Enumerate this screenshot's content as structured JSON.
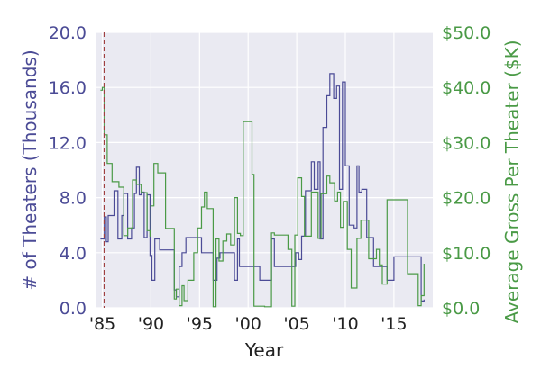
{
  "chart_data": {
    "type": "line",
    "title": "",
    "xlabel": "Year",
    "ylabel": "# of Theaters (Thousands)",
    "ylabel_right": "Average Gross Per Theater ($K)",
    "xlim": [
      1984.3,
      2019.0
    ],
    "ylim": [
      0,
      20
    ],
    "ylim_right": [
      0,
      50
    ],
    "grid": true,
    "colors": {
      "theaters": "#4b4b96",
      "gross": "#4a9a46",
      "marker": "#a04040",
      "background": "#eaeaf2",
      "grid": "#ffffff"
    },
    "x_ticks": [
      {
        "value": 1985,
        "label": "'85"
      },
      {
        "value": 1990,
        "label": "'90"
      },
      {
        "value": 1995,
        "label": "'95"
      },
      {
        "value": 2000,
        "label": "'00"
      },
      {
        "value": 2005,
        "label": "'05"
      },
      {
        "value": 2010,
        "label": "'10"
      },
      {
        "value": 2015,
        "label": "'15"
      }
    ],
    "y_ticks_left": [
      {
        "value": 0,
        "label": "0.0"
      },
      {
        "value": 4,
        "label": "4.0"
      },
      {
        "value": 8,
        "label": "8.0"
      },
      {
        "value": 12,
        "label": "12.0"
      },
      {
        "value": 16,
        "label": "16.0"
      },
      {
        "value": 20,
        "label": "20.0"
      }
    ],
    "y_ticks_right": [
      {
        "value": 0,
        "label": "$0.0"
      },
      {
        "value": 10,
        "label": "$10.0"
      },
      {
        "value": 20,
        "label": "$20.0"
      },
      {
        "value": 30,
        "label": "$30.0"
      },
      {
        "value": 40,
        "label": "$40.0"
      },
      {
        "value": 50,
        "label": "$50.0"
      }
    ],
    "marker_x": 1985.2,
    "series": [
      {
        "name": "Theaters (thousands)",
        "axis": "left",
        "x": [
          1984.8,
          1985.2,
          1985.4,
          1985.6,
          1986.2,
          1986.6,
          1987.0,
          1987.2,
          1987.6,
          1988.0,
          1988.3,
          1988.5,
          1988.8,
          1989.0,
          1989.3,
          1989.6,
          1989.9,
          1990.1,
          1990.4,
          1990.9,
          1991.3,
          1992.4,
          1992.6,
          1992.9,
          1993.2,
          1993.6,
          1994.2,
          1995.2,
          1996.4,
          1996.8,
          1997.1,
          1998.6,
          1998.9,
          1999.1,
          1999.4,
          2001.2,
          2002.4,
          2002.7,
          2004.9,
          2005.2,
          2005.5,
          2005.9,
          2006.5,
          2006.8,
          2007.2,
          2007.4,
          2007.7,
          2008.1,
          2008.4,
          2008.8,
          2009.1,
          2009.4,
          2009.7,
          2010.0,
          2010.4,
          2010.9,
          2011.2,
          2011.4,
          2011.7,
          2012.2,
          2012.9,
          2014.3,
          2015.0,
          2016.4,
          2017.8,
          2018.1
        ],
        "values": [
          5.0,
          6.6,
          4.8,
          6.7,
          8.5,
          5.0,
          6.7,
          8.3,
          5.0,
          5.8,
          8.3,
          10.2,
          8.2,
          8.4,
          5.1,
          8.2,
          3.8,
          2.0,
          5.0,
          4.2,
          4.2,
          1.3,
          0.8,
          3.0,
          4.0,
          5.1,
          5.1,
          4.0,
          2.0,
          3.6,
          4.0,
          2.0,
          5.0,
          3.0,
          3.0,
          2.0,
          5.0,
          3.0,
          4.0,
          3.5,
          5.2,
          8.5,
          10.6,
          8.6,
          10.6,
          5.0,
          13.1,
          15.4,
          17.0,
          15.2,
          16.1,
          8.6,
          16.4,
          10.3,
          6.0,
          5.8,
          10.3,
          8.4,
          8.6,
          5.1,
          3.0,
          2.0,
          3.7,
          3.7,
          0.5,
          0.6
        ]
      },
      {
        "name": "Average gross per theater ($K)",
        "axis": "right",
        "x": [
          1984.8,
          1985.0,
          1985.2,
          1985.5,
          1986.0,
          1986.7,
          1987.2,
          1987.6,
          1988.1,
          1988.5,
          1989.0,
          1989.6,
          1989.9,
          1990.0,
          1990.3,
          1990.7,
          1991.5,
          1992.4,
          1992.6,
          1992.9,
          1993.2,
          1993.4,
          1993.8,
          1994.4,
          1994.8,
          1995.2,
          1995.5,
          1995.8,
          1996.4,
          1996.7,
          1997.0,
          1997.4,
          1997.8,
          1998.2,
          1998.6,
          1998.9,
          1999.2,
          1999.5,
          2000.1,
          2000.4,
          2000.6,
          2001.7,
          2002.4,
          2002.7,
          2004.1,
          2004.5,
          2004.8,
          2005.1,
          2005.5,
          2005.8,
          2006.5,
          2007.2,
          2007.5,
          2008.1,
          2008.4,
          2008.9,
          2009.2,
          2009.5,
          2009.8,
          2010.2,
          2010.6,
          2011.2,
          2011.6,
          2012.4,
          2013.2,
          2013.5,
          2013.8,
          2014.3,
          2015.0,
          2016.4,
          2017.5,
          2017.8,
          2018.1
        ],
        "values": [
          39.5,
          40.0,
          31.4,
          26.2,
          22.9,
          21.9,
          13.1,
          14.5,
          23.2,
          22.4,
          20.9,
          14.0,
          13.0,
          18.5,
          26.2,
          24.5,
          14.4,
          1.6,
          3.4,
          0.4,
          4.0,
          1.3,
          5.0,
          10.0,
          14.5,
          18.3,
          21.0,
          18.0,
          0.2,
          12.5,
          8.5,
          12.1,
          13.4,
          11.4,
          20.0,
          13.5,
          13.1,
          33.8,
          33.8,
          24.2,
          0.3,
          0.2,
          13.6,
          13.2,
          10.6,
          0.3,
          13.2,
          23.6,
          20.2,
          13.0,
          21.0,
          12.6,
          20.7,
          23.9,
          22.7,
          19.4,
          21.0,
          14.6,
          19.3,
          10.6,
          3.6,
          12.6,
          15.9,
          8.9,
          10.6,
          7.8,
          4.3,
          19.6,
          19.6,
          6.2,
          0.4,
          2.2,
          8.0
        ]
      }
    ]
  }
}
